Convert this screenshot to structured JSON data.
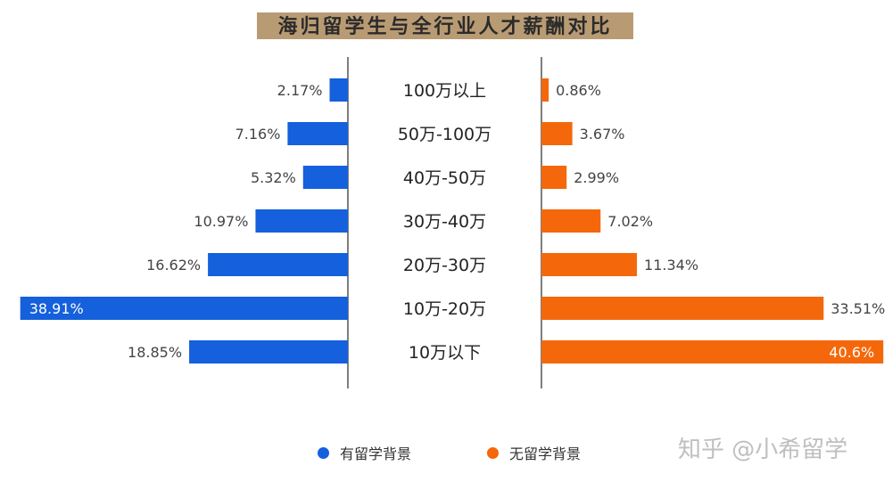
{
  "title": "海归留学生与全行业人才薪酬对比",
  "chart_data": {
    "type": "bar",
    "orientation": "horizontal-butterfly",
    "categories": [
      "100万以上",
      "50万-100万",
      "40万-50万",
      "30万-40万",
      "20万-30万",
      "10万-20万",
      "10万以下"
    ],
    "series": [
      {
        "name": "有留学背景",
        "color": "#1560dc",
        "values": [
          2.17,
          7.16,
          5.32,
          10.97,
          16.62,
          38.91,
          18.85
        ],
        "labels": [
          "2.17%",
          "7.16%",
          "5.32%",
          "10.97%",
          "16.62%",
          "38.91%",
          "18.85%"
        ]
      },
      {
        "name": "无留学背景",
        "color": "#f4680b",
        "values": [
          0.86,
          3.67,
          2.99,
          7.02,
          11.34,
          33.51,
          40.6
        ],
        "labels": [
          "0.86%",
          "3.67%",
          "2.99%",
          "7.02%",
          "11.34%",
          "33.51%",
          "40.6%"
        ]
      }
    ],
    "legend_position": "bottom",
    "grid": false
  },
  "watermark": "知乎 @小希留学"
}
